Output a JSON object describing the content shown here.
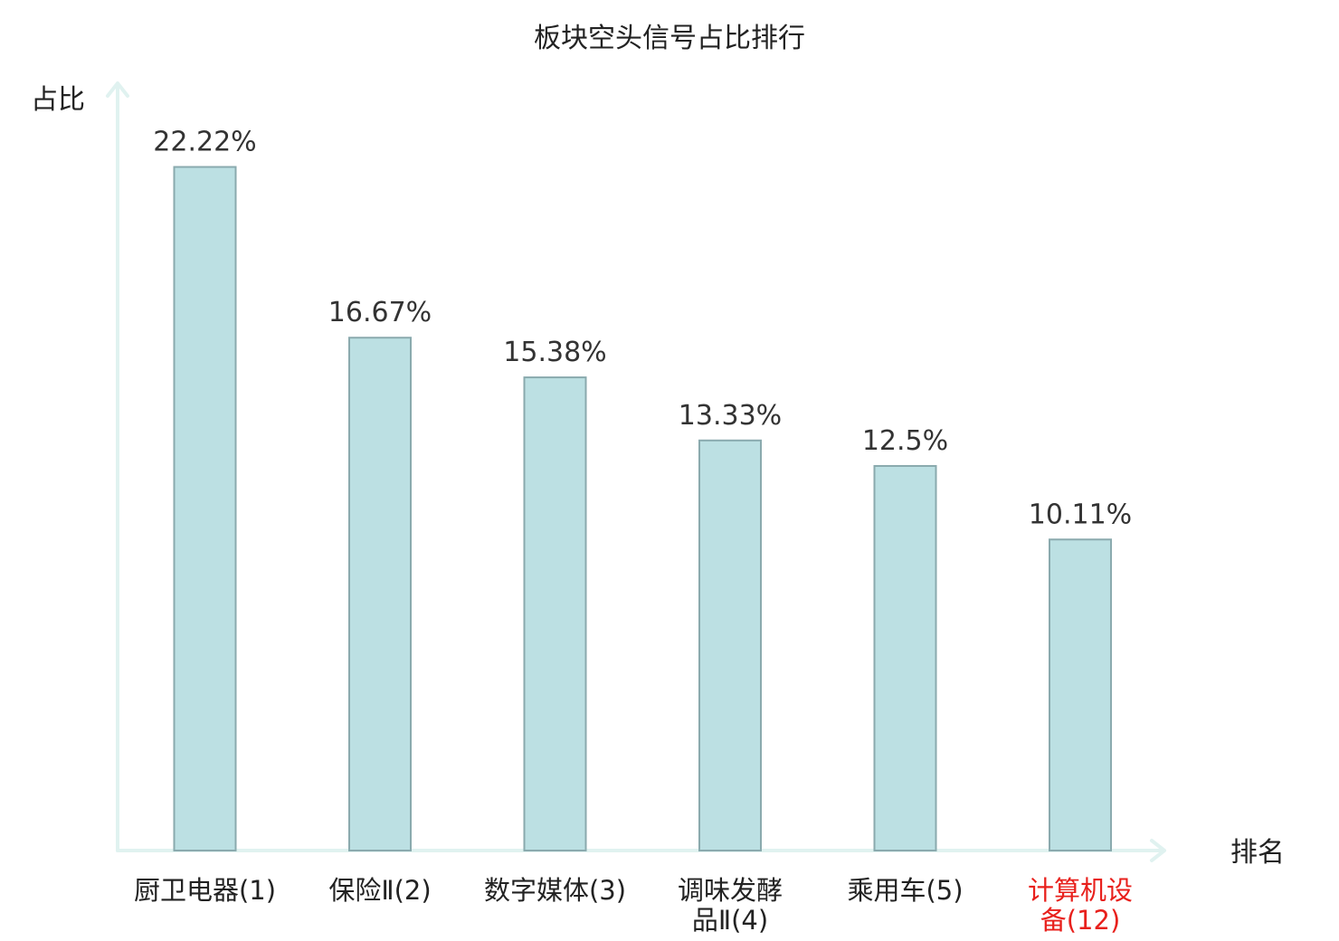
{
  "chart_data": {
    "type": "bar",
    "title": "板块空头信号占比排行",
    "ylabel": "占比",
    "xlabel": "排名",
    "categories": [
      [
        "厨卫电器(1)"
      ],
      [
        "保险Ⅱ(2)"
      ],
      [
        "数字媒体(3)"
      ],
      [
        "调味发酵",
        "品Ⅱ(4)"
      ],
      [
        "乘用车(5)"
      ],
      [
        "计算机设",
        "备(12)"
      ]
    ],
    "values": [
      22.22,
      16.67,
      15.38,
      13.33,
      12.5,
      10.11
    ],
    "value_labels": [
      "22.22%",
      "16.67%",
      "15.38%",
      "13.33%",
      "12.5%",
      "10.11%"
    ],
    "highlight_index": 5,
    "ylim": [
      0,
      25
    ],
    "grid": false,
    "colors": {
      "bar": "#bce0e3",
      "bar_border": "#8aaaae",
      "axis": "#e0f2f0",
      "highlight": "#e8201c"
    }
  }
}
